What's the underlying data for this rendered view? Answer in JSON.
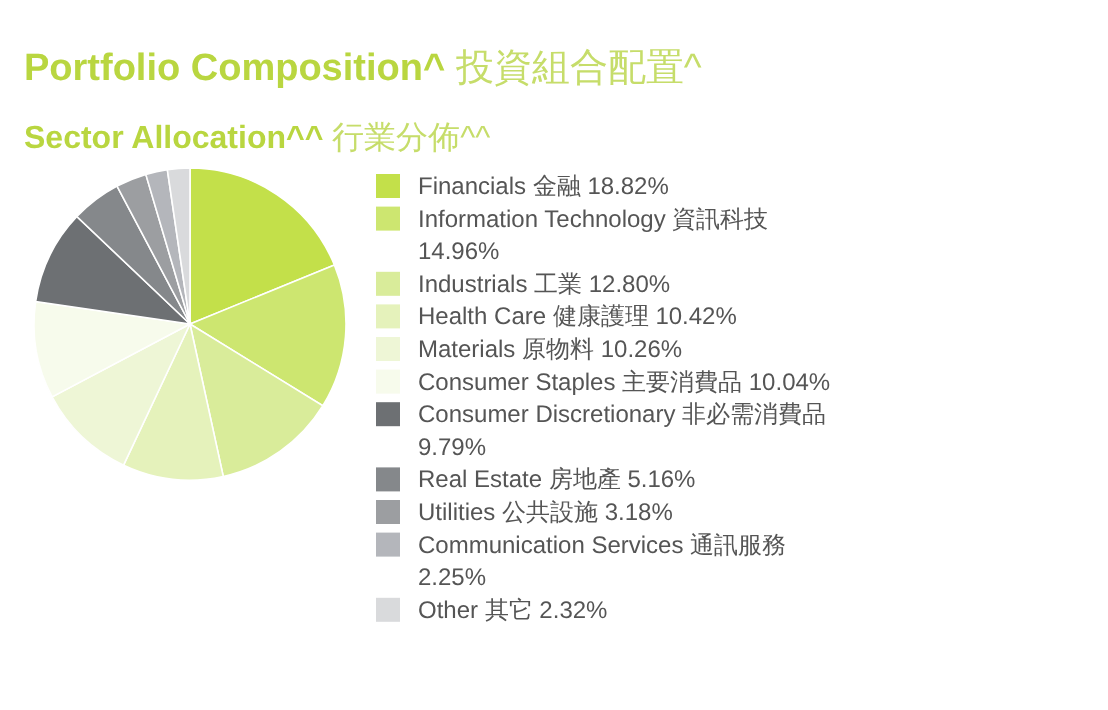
{
  "chart_data": {
    "type": "pie",
    "title": "Portfolio Composition^ 投資組合配置^",
    "subtitle": "Sector Allocation^^ 行業分佈^^",
    "categories": [
      "Financials 金融",
      "Information Technology 資訊科技",
      "Industrials 工業",
      "Health Care 健康護理",
      "Materials 原物料",
      "Consumer Staples 主要消費品",
      "Consumer Discretionary 非必需消費品",
      "Real Estate 房地產",
      "Utilities 公共設施",
      "Communication Services 通訊服務",
      "Other 其它"
    ],
    "values": [
      18.82,
      14.96,
      12.8,
      10.42,
      10.26,
      10.04,
      9.79,
      5.16,
      3.18,
      2.25,
      2.32
    ],
    "value_labels": [
      "18.82%",
      "14.96%",
      "12.80%",
      "10.42%",
      "10.26%",
      "10.04%",
      "9.79%",
      "5.16%",
      "3.18%",
      "2.25%",
      "2.32%"
    ],
    "colors": [
      "#c3e04a",
      "#cde670",
      "#d9ec9a",
      "#e5f2bb",
      "#eef6d6",
      "#f7fbec",
      "#6d7073",
      "#85888b",
      "#9c9ea1",
      "#b4b6bb",
      "#d9dadc"
    ],
    "legend": "right"
  }
}
